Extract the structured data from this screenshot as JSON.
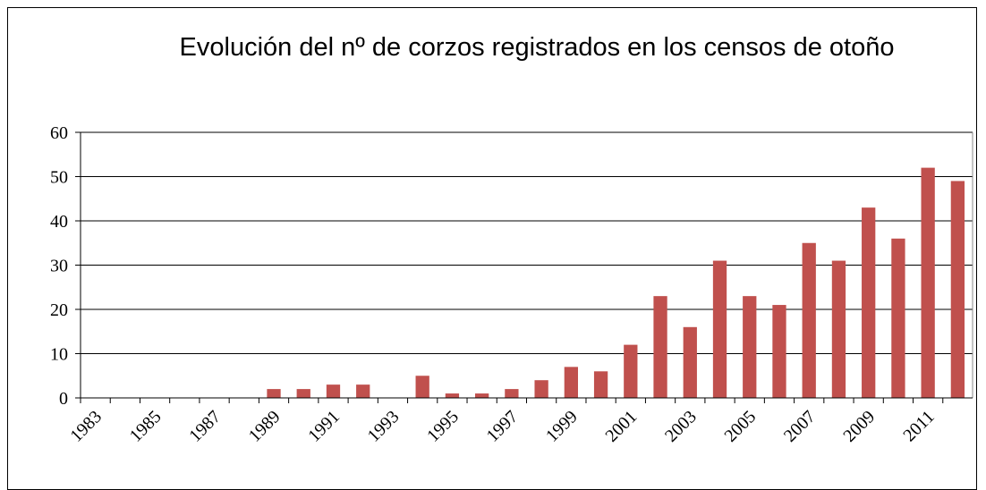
{
  "chart_data": {
    "type": "bar",
    "title": "Evolución del nº de corzos registrados en los censos de otoño",
    "categories": [
      "1983",
      null,
      "1985",
      null,
      "1987",
      null,
      "1989",
      null,
      "1991",
      null,
      "1993",
      null,
      "1995",
      null,
      "1997",
      null,
      "1999",
      null,
      "2001",
      null,
      "2003",
      null,
      "2005",
      null,
      "2007",
      null,
      "2009",
      null,
      "2011",
      null
    ],
    "values": [
      0,
      0,
      0,
      0,
      0,
      0,
      2,
      2,
      3,
      3,
      0,
      5,
      1,
      1,
      2,
      4,
      7,
      6,
      12,
      23,
      16,
      31,
      23,
      21,
      35,
      31,
      43,
      36,
      52,
      49
    ],
    "color": "#c0504d",
    "ylim": [
      0,
      60
    ],
    "yticks": [
      0,
      10,
      20,
      30,
      40,
      50,
      60
    ],
    "grid": true
  }
}
